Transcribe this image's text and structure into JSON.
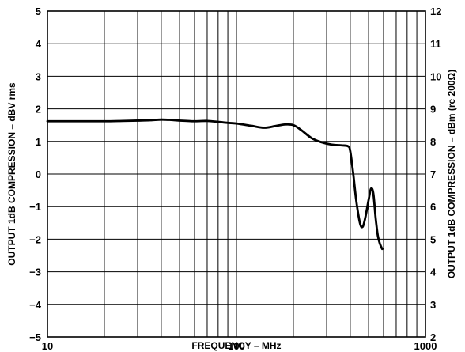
{
  "chart_data": {
    "type": "line",
    "title": "",
    "xlabel": "FREQUENCY – MHz",
    "ylabel": "OUTPUT 1dB COMPRESSION – dBV rms",
    "y2label": "OUTPUT 1dB COMPRESSION – dBm (re 200Ω)",
    "x_scale": "log",
    "xlim": [
      10,
      1000
    ],
    "ylim": [
      -5,
      5
    ],
    "y2lim": [
      2,
      12
    ],
    "grid": true,
    "x_ticks": [
      "10",
      "100",
      "1000"
    ],
    "y_ticks": [
      "5",
      "4",
      "3",
      "2",
      "1",
      "0",
      "−1",
      "−2",
      "−3",
      "−4",
      "−5"
    ],
    "y2_ticks": [
      "12",
      "11",
      "10",
      "9",
      "8",
      "7",
      "6",
      "5",
      "4",
      "3",
      "2"
    ],
    "series": [
      {
        "x": [
          10,
          15,
          20,
          25,
          30,
          35,
          40,
          45,
          50,
          60,
          70,
          80,
          90,
          100,
          120,
          140,
          160,
          180,
          200,
          220,
          250,
          280,
          320,
          360,
          390,
          400,
          415,
          430,
          450,
          465,
          480,
          500,
          515,
          530,
          545,
          560,
          575,
          590
        ],
        "y": [
          1.62,
          1.62,
          1.62,
          1.63,
          1.64,
          1.65,
          1.67,
          1.66,
          1.64,
          1.62,
          1.63,
          1.6,
          1.57,
          1.55,
          1.48,
          1.42,
          1.47,
          1.52,
          1.5,
          1.35,
          1.1,
          0.98,
          0.9,
          0.88,
          0.85,
          0.7,
          0.0,
          -0.8,
          -1.5,
          -1.62,
          -1.35,
          -0.8,
          -0.45,
          -0.6,
          -1.35,
          -1.9,
          -2.15,
          -2.3
        ]
      }
    ]
  }
}
